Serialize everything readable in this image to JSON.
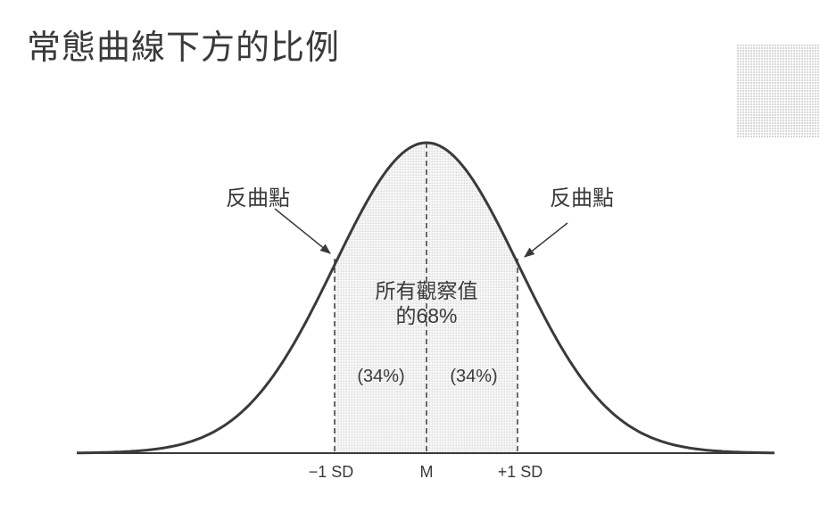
{
  "title": "常態曲線下方的比例",
  "labels": {
    "inflection_left": "反曲點",
    "inflection_right": "反曲點",
    "center_line1": "所有觀察值",
    "center_line2": "的68%",
    "left_pct": "(34%)",
    "right_pct": "(34%)",
    "minus_sd": "−1 SD",
    "mean": "M",
    "plus_sd": "+1 SD"
  },
  "colors": {
    "curve": "#3a3a3a",
    "stipple": "#c8c8c8"
  }
}
